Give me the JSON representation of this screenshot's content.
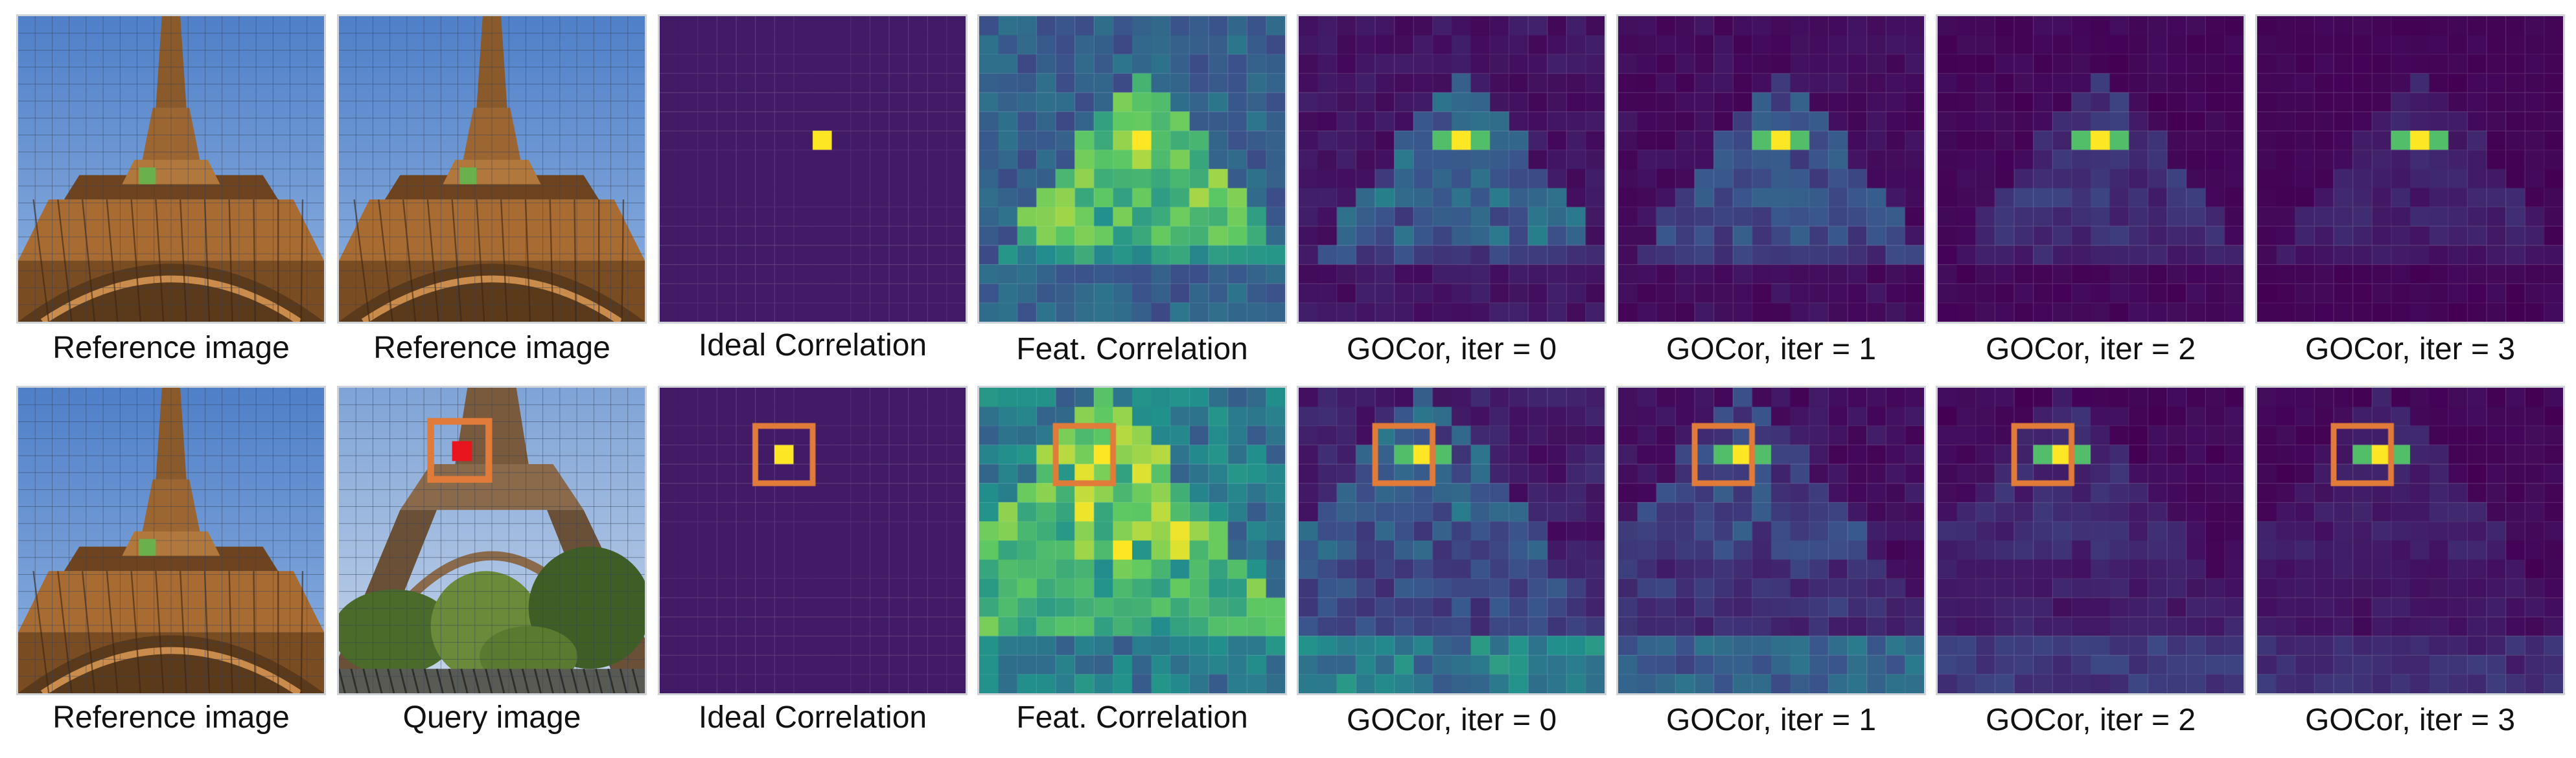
{
  "row1": {
    "captions": [
      "Reference image",
      "Reference image",
      "Ideal Correlation",
      "Feat. Correlation",
      "GOCor, iter = 0",
      "GOCor, iter = 1",
      "GOCor, iter = 2",
      "GOCor, iter = 3"
    ],
    "photos": [
      {
        "kind": "reference",
        "marker_color": "#6ab04c"
      },
      {
        "kind": "reference",
        "marker_color": "#6ab04c"
      }
    ]
  },
  "row2": {
    "captions": [
      "Reference image",
      "Query image",
      "Ideal Correlation",
      "Feat. Correlation",
      "GOCor, iter = 0",
      "GOCor, iter = 1",
      "GOCor, iter = 2",
      "GOCor, iter = 3"
    ],
    "photos": [
      {
        "kind": "reference",
        "marker_color": "#6ab04c"
      },
      {
        "kind": "query",
        "marker_color": "#e8141e"
      }
    ]
  },
  "colors": {
    "viridis_low": "#440154",
    "viridis_mid": "#21918c",
    "viridis_high": "#fde725",
    "highlight_box": "#e07b39"
  },
  "maps": {
    "grid_size": 16,
    "row1": [
      {
        "name": "ideal",
        "peak": [
          6,
          8
        ],
        "noise": 0.0,
        "structure": 0.0,
        "bg": 0.05
      },
      {
        "name": "feat",
        "peak": [
          6,
          8
        ],
        "noise": 0.18,
        "structure": 0.55,
        "bg": 0.22
      },
      {
        "name": "gocor-0",
        "peak": [
          6,
          8
        ],
        "noise": 0.08,
        "structure": 0.35,
        "bg": 0.02
      },
      {
        "name": "gocor-1",
        "peak": [
          6,
          8
        ],
        "noise": 0.06,
        "structure": 0.28,
        "bg": 0.01
      },
      {
        "name": "gocor-2",
        "peak": [
          6,
          8
        ],
        "noise": 0.04,
        "structure": 0.18,
        "bg": 0.0
      },
      {
        "name": "gocor-3",
        "peak": [
          6,
          8
        ],
        "noise": 0.03,
        "structure": 0.12,
        "bg": 0.0
      }
    ],
    "row2": [
      {
        "name": "ideal",
        "peak": [
          3,
          6
        ],
        "noise": 0.0,
        "structure": 0.0,
        "bg": 0.05,
        "box": [
          2,
          5,
          3
        ]
      },
      {
        "name": "feat",
        "peak": [
          3,
          6
        ],
        "noise": 0.25,
        "structure": 0.5,
        "bg": 0.28,
        "box": [
          2,
          4,
          3
        ]
      },
      {
        "name": "gocor-0",
        "peak": [
          3,
          6
        ],
        "noise": 0.12,
        "structure": 0.3,
        "bg": 0.02,
        "box": [
          2,
          4,
          3
        ],
        "ground": 0.45
      },
      {
        "name": "gocor-1",
        "peak": [
          3,
          6
        ],
        "noise": 0.08,
        "structure": 0.22,
        "bg": 0.01,
        "box": [
          2,
          4,
          3
        ],
        "ground": 0.35
      },
      {
        "name": "gocor-2",
        "peak": [
          3,
          6
        ],
        "noise": 0.05,
        "structure": 0.14,
        "bg": 0.0,
        "box": [
          2,
          4,
          3
        ],
        "ground": 0.2
      },
      {
        "name": "gocor-3",
        "peak": [
          3,
          6
        ],
        "noise": 0.04,
        "structure": 0.1,
        "bg": 0.0,
        "box": [
          2,
          4,
          3
        ],
        "ground": 0.15
      }
    ]
  }
}
